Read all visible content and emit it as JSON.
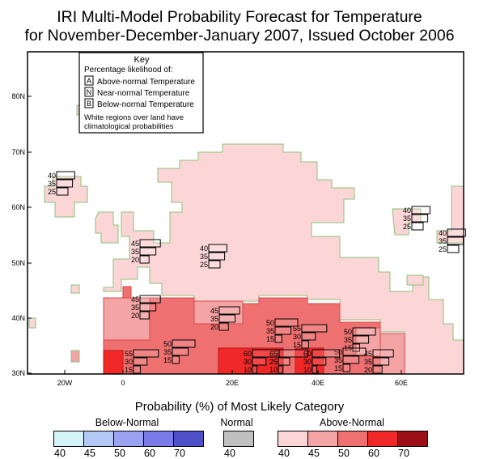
{
  "title": {
    "line1": "IRI Multi-Model Probability Forecast for Temperature",
    "line2": "for November-December-January 2007, Issued October 2006"
  },
  "key": {
    "title": "Key",
    "subtitle": "Percentage likelihood of:",
    "items": [
      {
        "letter": "A",
        "label": "Above-normal Temperature"
      },
      {
        "letter": "N",
        "label": "Near-normal Temperature"
      },
      {
        "letter": "B",
        "label": "Below-normal Temperature"
      }
    ],
    "note_line1": "White regions over land have",
    "note_line2": "climatological probabilities"
  },
  "axes": {
    "lat_labels": [
      "80N",
      "70N",
      "60N",
      "50N",
      "40N",
      "30N"
    ],
    "lon_labels": [
      "20W",
      "0",
      "20E",
      "40E",
      "60E"
    ]
  },
  "legend": {
    "title": "Probability (%) of Most Likely Category",
    "below": {
      "label": "Below-Normal",
      "colors": [
        "#d4f4fa",
        "#b4c8f5",
        "#9aa2f1",
        "#7a7ae8",
        "#5050c8"
      ],
      "ticks": [
        "40",
        "45",
        "50",
        "60",
        "70"
      ]
    },
    "normal": {
      "label": "Normal",
      "color": "#c0c0c0",
      "tick": "40"
    },
    "above": {
      "label": "Above-Normal",
      "colors": [
        "#fcd6d6",
        "#f4a4a4",
        "#ee7070",
        "#f02828",
        "#9a1016"
      ],
      "ticks": [
        "40",
        "45",
        "50",
        "60",
        "70"
      ]
    }
  },
  "glyphs": [
    {
      "a": "40",
      "n": "35",
      "b": "25"
    },
    {
      "a": "45",
      "n": "35",
      "b": "20"
    },
    {
      "a": "40",
      "n": "35",
      "b": "25"
    },
    {
      "a": "40",
      "n": "35",
      "b": "25"
    },
    {
      "a": "40",
      "n": "35",
      "b": "25"
    },
    {
      "a": "45",
      "n": "35",
      "b": "20"
    },
    {
      "a": "45",
      "n": "35",
      "b": "20"
    },
    {
      "a": "50",
      "n": "35",
      "b": "15"
    },
    {
      "a": "50",
      "n": "35",
      "b": "15"
    },
    {
      "a": "55",
      "n": "30",
      "b": "15"
    },
    {
      "a": "50",
      "n": "35",
      "b": "15"
    },
    {
      "a": "50",
      "n": "35",
      "b": "15"
    },
    {
      "a": "55",
      "n": "30",
      "b": "15"
    },
    {
      "a": "60",
      "n": "30",
      "b": "10"
    },
    {
      "a": "65",
      "n": "25",
      "b": "10"
    },
    {
      "a": "60",
      "n": "30",
      "b": "10"
    },
    {
      "a": "45",
      "n": "35",
      "b": "20"
    }
  ]
}
